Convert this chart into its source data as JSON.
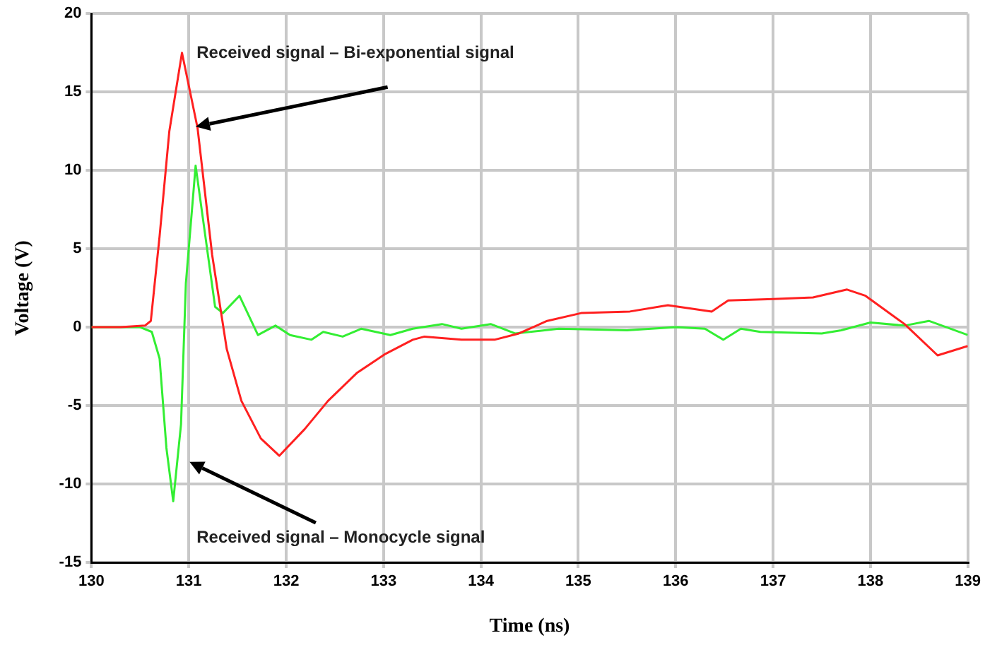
{
  "chart_data": {
    "type": "line",
    "xlabel": "Time (ns)",
    "ylabel": "Voltage (V)",
    "xlim": [
      130,
      139
    ],
    "xticks": [
      130,
      131,
      132,
      133,
      134,
      135,
      136,
      137,
      138,
      139
    ],
    "ylim": [
      -15,
      20
    ],
    "yticks": [
      -15,
      -10,
      -5,
      0,
      5,
      10,
      15,
      20
    ],
    "grid": true,
    "legend": false,
    "marker": "none",
    "line_style": "solid",
    "annotations": [
      "Received signal – Bi-exponential signal",
      "Received signal – Monocycle signal"
    ],
    "series": [
      {
        "color": "#ff2020",
        "x": [
          130,
          130.3,
          130.55,
          130.61,
          130.7,
          130.8,
          130.93,
          131.09,
          131.24,
          131.39,
          131.54,
          131.74,
          131.93,
          132.19,
          132.43,
          132.73,
          133.02,
          133.3,
          133.42,
          133.8,
          134.14,
          134.39,
          134.68,
          135.03,
          135.53,
          135.92,
          136.37,
          136.54,
          137.0,
          137.41,
          137.76,
          137.95,
          138.35,
          138.69,
          139
        ],
        "values": [
          0,
          0,
          0.1,
          0.4,
          5.8,
          12.5,
          17.5,
          12.7,
          4.6,
          -1.4,
          -4.7,
          -7.1,
          -8.2,
          -6.5,
          -4.7,
          -2.9,
          -1.7,
          -0.8,
          -0.6,
          -0.8,
          -0.8,
          -0.4,
          0.4,
          0.9,
          1.0,
          1.4,
          1.0,
          1.7,
          1.8,
          1.9,
          2.4,
          2.0,
          0.2,
          -1.8,
          -1.2
        ]
      },
      {
        "color": "#33ee33",
        "x": [
          130,
          130.5,
          130.62,
          130.7,
          130.77,
          130.84,
          130.92,
          130.97,
          131.07,
          131.17,
          131.27,
          131.35,
          131.52,
          131.71,
          131.89,
          132.04,
          132.26,
          132.38,
          132.58,
          132.77,
          133.07,
          133.3,
          133.6,
          133.8,
          134.1,
          134.35,
          134.8,
          135.5,
          136.0,
          136.3,
          136.49,
          136.67,
          136.87,
          137.5,
          137.7,
          138.0,
          138.35,
          138.6,
          139
        ],
        "values": [
          0,
          0,
          -0.3,
          -2.0,
          -7.7,
          -11.1,
          -6.2,
          2.8,
          10.3,
          5.8,
          1.3,
          0.9,
          2.0,
          -0.5,
          0.1,
          -0.5,
          -0.8,
          -0.3,
          -0.6,
          -0.1,
          -0.5,
          -0.1,
          0.2,
          -0.1,
          0.2,
          -0.4,
          -0.1,
          -0.2,
          0,
          -0.1,
          -0.8,
          -0.1,
          -0.3,
          -0.4,
          -0.2,
          0.3,
          0.1,
          0.4,
          -0.5
        ]
      }
    ]
  }
}
